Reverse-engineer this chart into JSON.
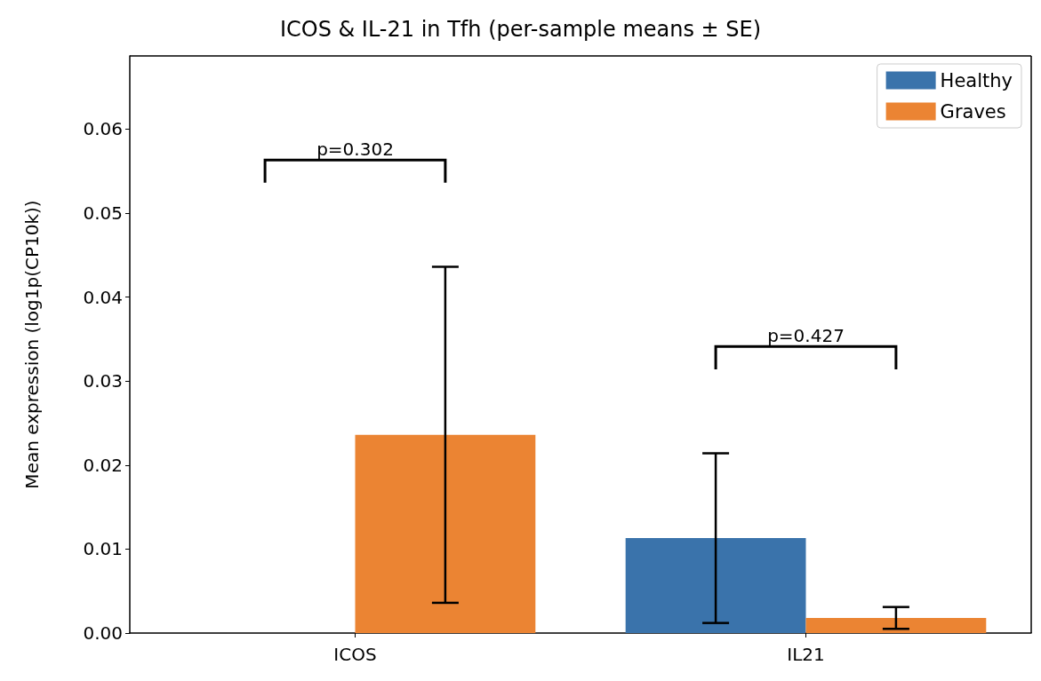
{
  "chart_data": {
    "type": "bar",
    "title": "ICOS & IL-21 in Tfh (per-sample means ± SE)",
    "ylabel": "Mean expression (log1p(CP10k))",
    "categories": [
      "ICOS",
      "IL21"
    ],
    "series": [
      {
        "name": "Healthy",
        "color": "#3a73ab",
        "values": [
          0,
          0.0113
        ],
        "errors": [
          null,
          0.0101
        ]
      },
      {
        "name": "Graves",
        "color": "#eb8433",
        "values": [
          0.0236,
          0.0018
        ],
        "errors": [
          0.02,
          0.0013
        ]
      }
    ],
    "ylim": [
      0,
      0.0687
    ],
    "yticks": [
      {
        "value": 0,
        "label": "0.00"
      },
      {
        "value": 0.01,
        "label": "0.01"
      },
      {
        "value": 0.02,
        "label": "0.02"
      },
      {
        "value": 0.03,
        "label": "0.03"
      },
      {
        "value": 0.04,
        "label": "0.04"
      },
      {
        "value": 0.05,
        "label": "0.05"
      },
      {
        "value": 0.06,
        "label": "0.06"
      }
    ],
    "annotations": [
      "p=0.302",
      "p=0.427"
    ],
    "legend": "top right",
    "grid": false
  }
}
